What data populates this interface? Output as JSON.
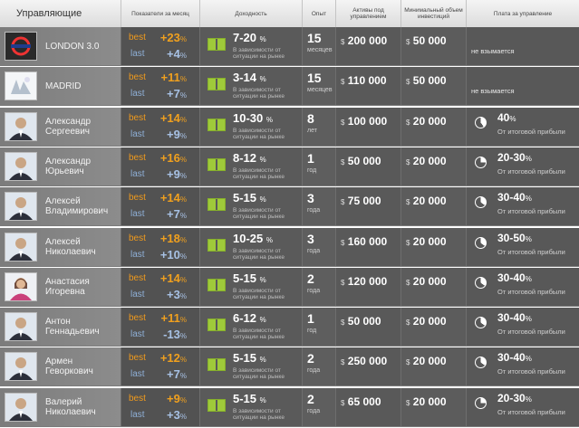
{
  "header": {
    "managers": "Управляющие",
    "monthly": "Показатели за месяц",
    "yield": "Доходность",
    "experience": "Опыт",
    "assets": "Активы под управлением",
    "min_invest": "Минимальный объем инвестиций",
    "fee": "Плата за управление"
  },
  "labels": {
    "best": "best",
    "last": "last",
    "yield_note": "В зависимости от ситуации на рынке",
    "fee_note": "От итоговой прибыли",
    "no_fee": "не взымается",
    "dollar": "$",
    "percent": "%"
  },
  "colors": {
    "best": "#f09a1c",
    "last": "#a7c1e4",
    "green": "#9fca3a"
  },
  "rows": [
    {
      "name": "LONDON 3.0",
      "best": "+23",
      "last": "+4",
      "yield": "7-20",
      "exp": "15",
      "exp_unit": "месяцев",
      "assets": "200 000",
      "min": "50 000",
      "fee": "",
      "has_fee": false,
      "avatar": "london-logo"
    },
    {
      "name": "MADRID",
      "best": "+11",
      "last": "+7",
      "yield": "3-14",
      "exp": "15",
      "exp_unit": "месяцев",
      "assets": "110 000",
      "min": "50 000",
      "fee": "",
      "has_fee": false,
      "avatar": "madrid-logo"
    },
    {
      "name": "Александр Сергеевич",
      "best": "+14",
      "last": "+9",
      "yield": "10-30",
      "exp": "8",
      "exp_unit": "лет",
      "assets": "100 000",
      "min": "20 000",
      "fee": "40",
      "has_fee": true,
      "avatar": "person"
    },
    {
      "name": "Александр Юрьевич",
      "best": "+16",
      "last": "+9",
      "yield": "8-12",
      "exp": "1",
      "exp_unit": "год",
      "assets": "50 000",
      "min": "20 000",
      "fee": "20-30",
      "has_fee": true,
      "avatar": "person"
    },
    {
      "name": "Алексей Владимирович",
      "best": "+14",
      "last": "+7",
      "yield": "5-15",
      "exp": "3",
      "exp_unit": "года",
      "assets": "75 000",
      "min": "20 000",
      "fee": "30-40",
      "has_fee": true,
      "avatar": "person"
    },
    {
      "name": "Алексей Николаевич",
      "best": "+18",
      "last": "+10",
      "yield": "10-25",
      "exp": "3",
      "exp_unit": "года",
      "assets": "160 000",
      "min": "20 000",
      "fee": "30-50",
      "has_fee": true,
      "avatar": "person"
    },
    {
      "name": "Анастасия Игоревна",
      "best": "+14",
      "last": "+3",
      "yield": "5-15",
      "exp": "2",
      "exp_unit": "года",
      "assets": "120 000",
      "min": "20 000",
      "fee": "30-40",
      "has_fee": true,
      "avatar": "person-female"
    },
    {
      "name": "Антон Геннадьевич",
      "best": "+11",
      "last": "-13",
      "yield": "6-12",
      "exp": "1",
      "exp_unit": "год",
      "assets": "50 000",
      "min": "20 000",
      "fee": "30-40",
      "has_fee": true,
      "avatar": "person"
    },
    {
      "name": "Армен Геворкович",
      "best": "+12",
      "last": "+7",
      "yield": "5-15",
      "exp": "2",
      "exp_unit": "года",
      "assets": "250 000",
      "min": "20 000",
      "fee": "30-40",
      "has_fee": true,
      "avatar": "person"
    },
    {
      "name": "Валерий Николаевич",
      "best": "+9",
      "last": "+3",
      "yield": "5-15",
      "exp": "2",
      "exp_unit": "года",
      "assets": "65 000",
      "min": "20 000",
      "fee": "20-30",
      "has_fee": true,
      "avatar": "person"
    }
  ]
}
